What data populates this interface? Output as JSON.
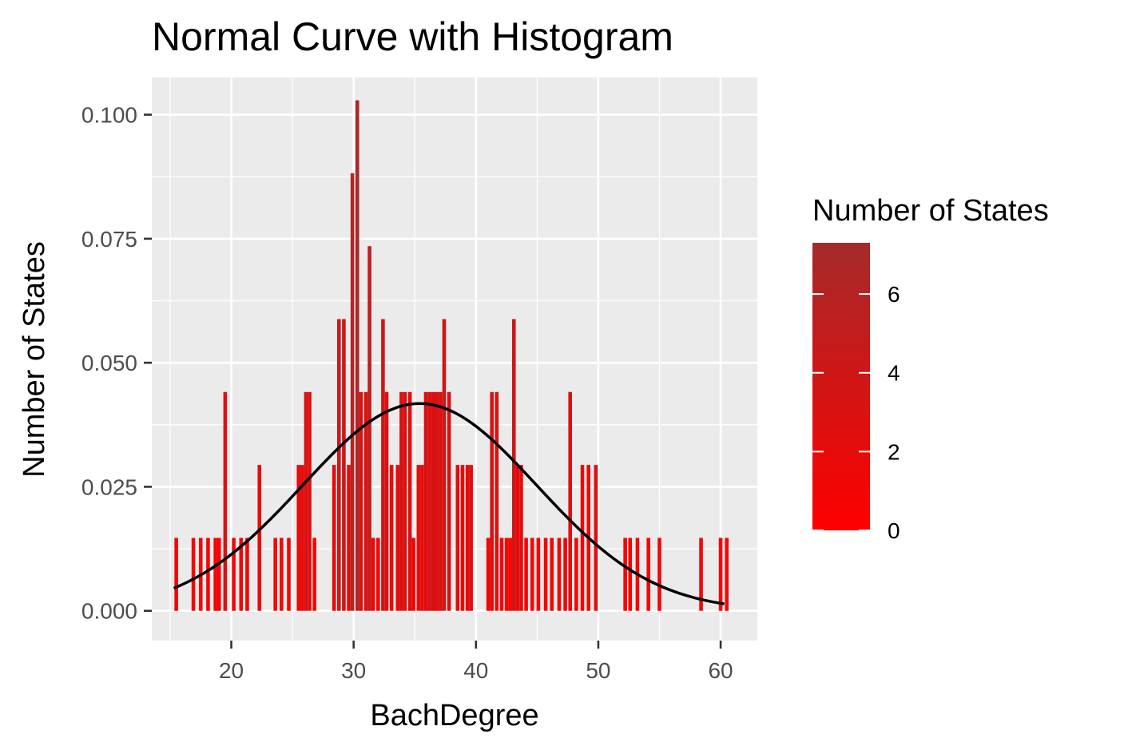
{
  "chart_data": {
    "type": "bar",
    "title": "Normal Curve with Histogram",
    "xlabel": "BachDegree",
    "ylabel": "Number of States",
    "xlim": [
      13.5,
      63.0
    ],
    "ylim": [
      -0.006,
      0.1075
    ],
    "x_ticks": [
      20,
      30,
      40,
      50,
      60
    ],
    "x_tick_labels": [
      "20",
      "30",
      "40",
      "50",
      "60"
    ],
    "y_ticks": [
      0.0,
      0.025,
      0.05,
      0.075,
      0.1
    ],
    "y_tick_labels": [
      "0.000",
      "0.025",
      "0.050",
      "0.075",
      "0.100"
    ],
    "grid": true,
    "bin_width": 0.3,
    "bars": [
      {
        "x": 15.5,
        "count": 1
      },
      {
        "x": 16.9,
        "count": 1
      },
      {
        "x": 17.5,
        "count": 1
      },
      {
        "x": 18.1,
        "count": 1
      },
      {
        "x": 18.7,
        "count": 1
      },
      {
        "x": 19.0,
        "count": 1
      },
      {
        "x": 19.5,
        "count": 3
      },
      {
        "x": 20.2,
        "count": 1
      },
      {
        "x": 20.8,
        "count": 1
      },
      {
        "x": 21.3,
        "count": 1
      },
      {
        "x": 22.3,
        "count": 2
      },
      {
        "x": 23.6,
        "count": 1
      },
      {
        "x": 24.1,
        "count": 1
      },
      {
        "x": 24.7,
        "count": 1
      },
      {
        "x": 25.5,
        "count": 2
      },
      {
        "x": 25.8,
        "count": 2
      },
      {
        "x": 26.1,
        "count": 3
      },
      {
        "x": 26.4,
        "count": 3
      },
      {
        "x": 26.8,
        "count": 1
      },
      {
        "x": 28.4,
        "count": 2
      },
      {
        "x": 28.8,
        "count": 4
      },
      {
        "x": 29.2,
        "count": 4
      },
      {
        "x": 29.6,
        "count": 2
      },
      {
        "x": 29.9,
        "count": 6
      },
      {
        "x": 30.3,
        "count": 7
      },
      {
        "x": 30.6,
        "count": 3
      },
      {
        "x": 31.0,
        "count": 3
      },
      {
        "x": 31.3,
        "count": 5
      },
      {
        "x": 31.6,
        "count": 1
      },
      {
        "x": 32.0,
        "count": 1
      },
      {
        "x": 32.4,
        "count": 4
      },
      {
        "x": 32.7,
        "count": 3
      },
      {
        "x": 33.1,
        "count": 2
      },
      {
        "x": 33.6,
        "count": 2
      },
      {
        "x": 33.9,
        "count": 3
      },
      {
        "x": 34.2,
        "count": 3
      },
      {
        "x": 34.6,
        "count": 3
      },
      {
        "x": 34.9,
        "count": 1
      },
      {
        "x": 35.3,
        "count": 2
      },
      {
        "x": 35.6,
        "count": 2
      },
      {
        "x": 35.9,
        "count": 3
      },
      {
        "x": 36.2,
        "count": 3
      },
      {
        "x": 36.5,
        "count": 3
      },
      {
        "x": 36.8,
        "count": 3
      },
      {
        "x": 37.1,
        "count": 3
      },
      {
        "x": 37.4,
        "count": 4
      },
      {
        "x": 37.8,
        "count": 3
      },
      {
        "x": 38.5,
        "count": 2
      },
      {
        "x": 38.9,
        "count": 2
      },
      {
        "x": 39.3,
        "count": 2
      },
      {
        "x": 39.6,
        "count": 2
      },
      {
        "x": 41.0,
        "count": 1
      },
      {
        "x": 41.3,
        "count": 3
      },
      {
        "x": 41.7,
        "count": 3
      },
      {
        "x": 42.1,
        "count": 1
      },
      {
        "x": 42.5,
        "count": 1
      },
      {
        "x": 42.8,
        "count": 1
      },
      {
        "x": 43.1,
        "count": 4
      },
      {
        "x": 43.4,
        "count": 2
      },
      {
        "x": 43.7,
        "count": 2
      },
      {
        "x": 44.1,
        "count": 1
      },
      {
        "x": 44.6,
        "count": 1
      },
      {
        "x": 45.1,
        "count": 1
      },
      {
        "x": 45.7,
        "count": 1
      },
      {
        "x": 46.2,
        "count": 1
      },
      {
        "x": 46.8,
        "count": 1
      },
      {
        "x": 47.3,
        "count": 1
      },
      {
        "x": 47.7,
        "count": 3
      },
      {
        "x": 48.2,
        "count": 1
      },
      {
        "x": 48.7,
        "count": 2
      },
      {
        "x": 49.2,
        "count": 2
      },
      {
        "x": 49.8,
        "count": 2
      },
      {
        "x": 52.2,
        "count": 1
      },
      {
        "x": 52.6,
        "count": 1
      },
      {
        "x": 53.2,
        "count": 1
      },
      {
        "x": 54.1,
        "count": 1
      },
      {
        "x": 55.0,
        "count": 1
      },
      {
        "x": 58.4,
        "count": 1
      },
      {
        "x": 60.0,
        "count": 1
      },
      {
        "x": 60.5,
        "count": 1
      }
    ],
    "density_per_count": 0.0147,
    "normal_curve": {
      "mean": 35.4,
      "sd": 9.55,
      "x_from": 15.3,
      "x_to": 60.3
    },
    "legend": {
      "title": "Number of States",
      "placement": "right",
      "ticks": [
        0,
        2,
        4,
        6
      ],
      "range": [
        0,
        7.3
      ],
      "color_low": "#ff0000",
      "color_high": "#a52a2a"
    },
    "colors": {
      "panel_bg": "#ebebeb",
      "grid_major": "#ffffff",
      "curve": "#000000",
      "axis_text": "#4d4d4d"
    }
  }
}
